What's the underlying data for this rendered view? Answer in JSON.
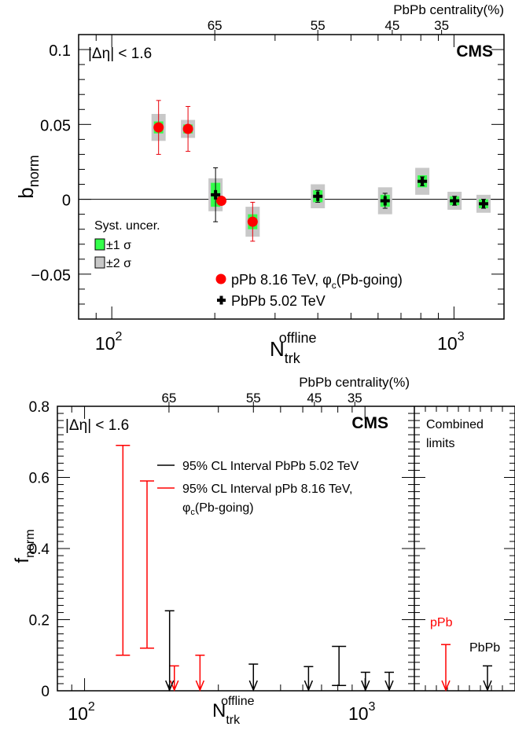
{
  "chart_data": [
    {
      "type": "scatter",
      "top_axis_title": "PbPb centrality(%)",
      "top_tick_labels": [
        {
          "label": "65",
          "x": 200
        },
        {
          "label": "55",
          "x": 400
        },
        {
          "label": "45",
          "x": 660
        },
        {
          "label": "35",
          "x": 920
        }
      ],
      "xlabel_main": "N",
      "xlabel_sub": "trk",
      "xlabel_sup": "offline",
      "ylabel_main": "b",
      "ylabel_sub": "norm",
      "x_scale": "log",
      "xlim": [
        80,
        1400
      ],
      "ylim": [
        -0.08,
        0.11
      ],
      "x_tick_labels": [
        {
          "base": "10",
          "exp": "2",
          "value": 100
        },
        {
          "base": "10",
          "exp": "3",
          "value": 1000
        }
      ],
      "y_tick_labels": [
        {
          "label": "0.1",
          "value": 0.1
        },
        {
          "label": "0.05",
          "value": 0.05
        },
        {
          "label": "0",
          "value": 0
        },
        {
          "label": "−0.05",
          "value": -0.05
        }
      ],
      "eta_label": "|Δη| < 1.6",
      "experiment": "CMS",
      "syst_title": "Syst. uncer.",
      "syst_1sigma": "±1 σ",
      "syst_2sigma": "±2 σ",
      "colors": {
        "ppb": "#ff0000",
        "pbpb": "#000000",
        "sigma1": "#33ff4a",
        "sigma2": "#c8c8c8",
        "err_ppb": "#e8000a"
      },
      "series": [
        {
          "name": "pPb 8.16 TeV, φc(Pb-going)",
          "legend_main": "pPb 8.16 TeV, φ",
          "legend_sub": "c",
          "legend_tail": "(Pb-going)",
          "marker": "circle",
          "points": [
            {
              "x": 137,
              "y": 0.048,
              "err": 0.018,
              "s1": 0.004,
              "s2": 0.009
            },
            {
              "x": 167,
              "y": 0.047,
              "err": 0.015,
              "s1": 0.003,
              "s2": 0.006
            },
            {
              "x": 209,
              "y": -0.001,
              "err": 0.0,
              "s1": 0.0,
              "s2": 0.0
            },
            {
              "x": 258,
              "y": -0.015,
              "err": 0.013,
              "s1": 0.005,
              "s2": 0.01
            }
          ]
        },
        {
          "name": "PbPb 5.02 TeV",
          "legend_main": "PbPb 5.02 TeV",
          "marker": "cross",
          "points": [
            {
              "x": 201,
              "y": 0.003,
              "err": 0.018,
              "s1": 0.008,
              "s2": 0.011
            },
            {
              "x": 400,
              "y": 0.002,
              "err": 0.004,
              "s1": 0.004,
              "s2": 0.008
            },
            {
              "x": 629,
              "y": -0.001,
              "err": 0.005,
              "s1": 0.004,
              "s2": 0.009
            },
            {
              "x": 808,
              "y": 0.012,
              "err": 0.003,
              "s1": 0.004,
              "s2": 0.009
            },
            {
              "x": 1004,
              "y": -0.001,
              "err": 0.003,
              "s1": 0.003,
              "s2": 0.006
            },
            {
              "x": 1220,
              "y": -0.003,
              "err": 0.003,
              "s1": 0.003,
              "s2": 0.006
            }
          ]
        }
      ]
    },
    {
      "type": "bar",
      "top_axis_title": "PbPb centrality(%)",
      "top_tick_labels": [
        {
          "label": "65",
          "x": 200
        },
        {
          "label": "55",
          "x": 400
        },
        {
          "label": "45",
          "x": 660
        },
        {
          "label": "35",
          "x": 920
        }
      ],
      "xlabel_main": "N",
      "xlabel_sub": "trk",
      "xlabel_sup": "offline",
      "ylabel_main": "f",
      "ylabel_sub": "norm",
      "x_scale": "log",
      "xlim": [
        80,
        1500
      ],
      "ylim": [
        0,
        0.8
      ],
      "x_tick_labels": [
        {
          "base": "10",
          "exp": "2",
          "value": 100
        },
        {
          "base": "10",
          "exp": "3",
          "value": 1000
        }
      ],
      "y_tick_labels": [
        {
          "label": "0.8",
          "value": 0.8
        },
        {
          "label": "0.6",
          "value": 0.6
        },
        {
          "label": "0.4",
          "value": 0.4
        },
        {
          "label": "0.2",
          "value": 0.2
        },
        {
          "label": "0",
          "value": 0
        }
      ],
      "eta_label": "|Δη| < 1.6",
      "experiment": "CMS",
      "legend": [
        {
          "text": "95% CL Interval PbPb 5.02 TeV",
          "color": "#000000"
        },
        {
          "text": "95% CL Interval pPb 8.16 TeV,",
          "color": "#ff0000",
          "line2_main": "φ",
          "line2_sub": "c",
          "line2_tail": "(Pb-going)"
        }
      ],
      "series": [
        {
          "name": "pPb",
          "color": "#ff0000",
          "intervals": [
            {
              "x": 137,
              "low": 0.1,
              "high": 0.69
            },
            {
              "x": 167,
              "low": 0.12,
              "high": 0.59
            }
          ],
          "upper_limits": [
            {
              "x": 209,
              "high": 0.07
            },
            {
              "x": 258,
              "high": 0.1
            }
          ]
        },
        {
          "name": "PbPb",
          "color": "#000000",
          "intervals": [
            {
              "x": 808,
              "low": 0.015,
              "high": 0.125
            }
          ],
          "upper_limits": [
            {
              "x": 201,
              "high": 0.225
            },
            {
              "x": 400,
              "high": 0.075
            },
            {
              "x": 629,
              "high": 0.068
            },
            {
              "x": 1004,
              "high": 0.052
            },
            {
              "x": 1220,
              "high": 0.052
            }
          ]
        }
      ],
      "combined_panel": {
        "title_line1": "Combined",
        "title_line2": "limits",
        "ppb_label": "pPb",
        "pbpb_label": "PbPb",
        "ppb_limit": 0.13,
        "pbpb_limit": 0.07
      }
    }
  ]
}
